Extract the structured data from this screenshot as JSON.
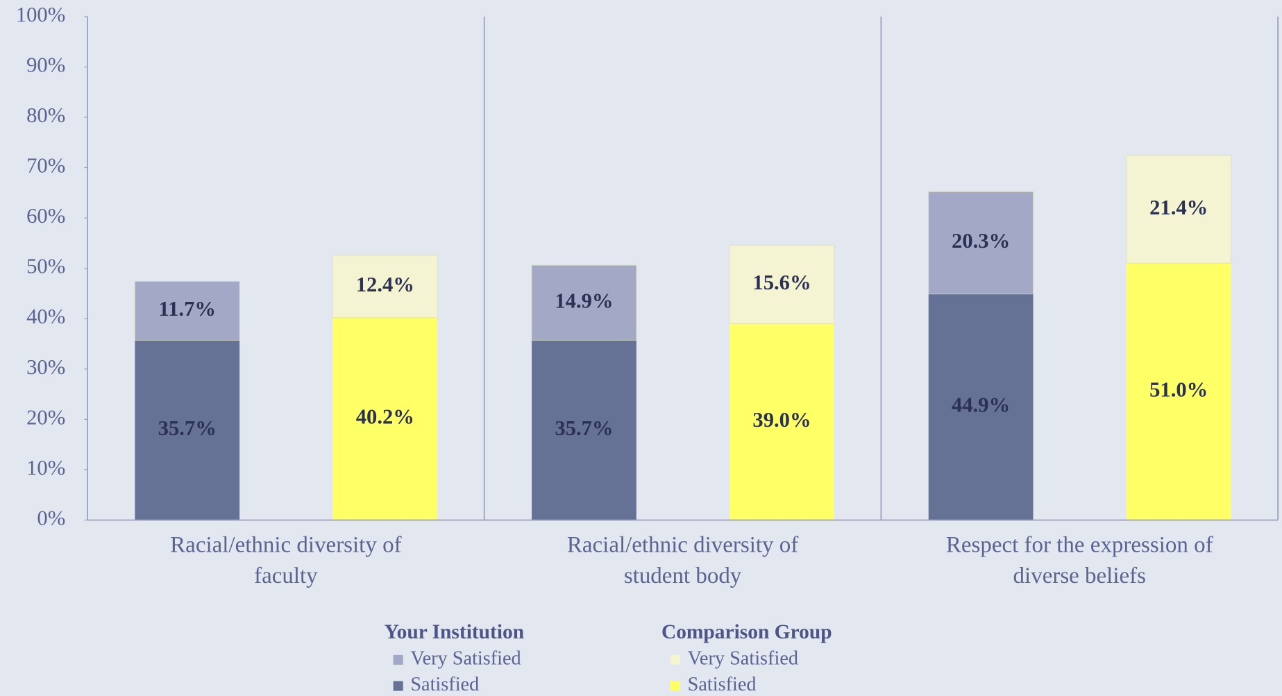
{
  "chart_data": {
    "type": "stacked-bar",
    "categories": [
      "Racial/ethnic diversity of faculty",
      "Racial/ethnic diversity of student body",
      "Respect for the expression of diverse beliefs"
    ],
    "groups": [
      {
        "name": "Your Institution",
        "series": [
          {
            "name": "Satisfied",
            "color": "#667196",
            "values": [
              35.7,
              35.7,
              44.9
            ],
            "value_labels": [
              "35.7%",
              "35.7%",
              "44.9%"
            ]
          },
          {
            "name": "Very Satisfied",
            "color": "#a3a8c6",
            "values": [
              11.7,
              14.9,
              20.3
            ],
            "value_labels": [
              "11.7%",
              "14.9%",
              "20.3%"
            ]
          }
        ]
      },
      {
        "name": "Comparison Group",
        "series": [
          {
            "name": "Satisfied",
            "color": "#ffff66",
            "values": [
              40.2,
              39.0,
              51.0
            ],
            "value_labels": [
              "40.2%",
              "39.0%",
              "51.0%"
            ]
          },
          {
            "name": "Very Satisfied",
            "color": "#f4f4d2",
            "values": [
              12.4,
              15.6,
              21.4
            ],
            "value_labels": [
              "12.4%",
              "15.6%",
              "21.4%"
            ]
          }
        ]
      }
    ],
    "ylim": [
      0,
      100
    ],
    "yticks": [
      {
        "value": 0,
        "label": "0%"
      },
      {
        "value": 10,
        "label": "10%"
      },
      {
        "value": 20,
        "label": "20%"
      },
      {
        "value": 30,
        "label": "30%"
      },
      {
        "value": 40,
        "label": "40%"
      },
      {
        "value": 50,
        "label": "50%"
      },
      {
        "value": 60,
        "label": "60%"
      },
      {
        "value": 70,
        "label": "70%"
      },
      {
        "value": 80,
        "label": "80%"
      },
      {
        "value": 90,
        "label": "90%"
      },
      {
        "value": 100,
        "label": "100%"
      }
    ]
  }
}
